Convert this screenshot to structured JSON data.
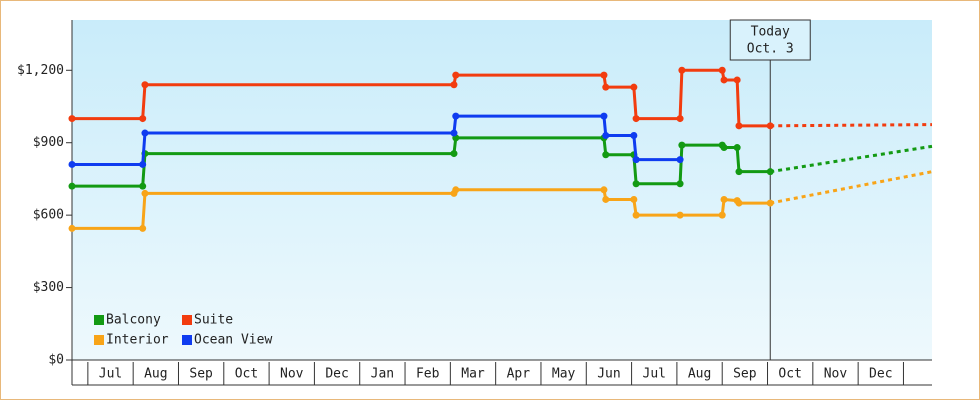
{
  "chart_data": {
    "type": "line",
    "ylim": [
      0,
      1400
    ],
    "yticks": [
      {
        "value": 0,
        "label": "$0"
      },
      {
        "value": 300,
        "label": "$300"
      },
      {
        "value": 600,
        "label": "$600"
      },
      {
        "value": 900,
        "label": "$900"
      },
      {
        "value": 1200,
        "label": "$1,200"
      }
    ],
    "xlim": [
      -0.35,
      18.63
    ],
    "xticks": [
      {
        "value": 0.5,
        "label": "Jul"
      },
      {
        "value": 1.5,
        "label": "Aug"
      },
      {
        "value": 2.5,
        "label": "Sep"
      },
      {
        "value": 3.5,
        "label": "Oct"
      },
      {
        "value": 4.5,
        "label": "Nov"
      },
      {
        "value": 5.5,
        "label": "Dec"
      },
      {
        "value": 6.5,
        "label": "Jan"
      },
      {
        "value": 7.5,
        "label": "Feb"
      },
      {
        "value": 8.5,
        "label": "Mar"
      },
      {
        "value": 9.5,
        "label": "Apr"
      },
      {
        "value": 10.5,
        "label": "May"
      },
      {
        "value": 11.5,
        "label": "Jun"
      },
      {
        "value": 12.5,
        "label": "Jul"
      },
      {
        "value": 13.5,
        "label": "Aug"
      },
      {
        "value": 14.5,
        "label": "Sep"
      },
      {
        "value": 15.5,
        "label": "Oct"
      },
      {
        "value": 16.5,
        "label": "Nov"
      },
      {
        "value": 17.5,
        "label": "Dec"
      }
    ],
    "today": {
      "x": 15.06,
      "label": [
        "Today",
        "Oct. 3"
      ]
    },
    "legend": "bottom-left",
    "series": [
      {
        "name": "Balcony",
        "color": "#139a13",
        "x": [
          -0.35,
          1.21,
          1.26,
          8.08,
          8.12,
          11.39,
          11.43,
          12.05,
          12.1,
          13.07,
          13.11,
          14.0,
          14.04,
          14.33,
          14.37,
          15.06
        ],
        "values": [
          720,
          720,
          855,
          855,
          920,
          920,
          850,
          850,
          730,
          730,
          890,
          890,
          880,
          880,
          780,
          780
        ],
        "projection": {
          "x": [
            15.06,
            18.63
          ],
          "values": [
            780,
            885
          ]
        }
      },
      {
        "name": "Suite",
        "color": "#f23c0f",
        "x": [
          -0.35,
          1.21,
          1.26,
          8.08,
          8.12,
          11.39,
          11.43,
          12.05,
          12.1,
          13.07,
          13.11,
          14.0,
          14.04,
          14.33,
          14.37,
          15.06
        ],
        "values": [
          1000,
          1000,
          1140,
          1140,
          1180,
          1180,
          1130,
          1130,
          1000,
          1000,
          1200,
          1200,
          1160,
          1160,
          970,
          970
        ],
        "projection": {
          "x": [
            15.06,
            18.63
          ],
          "values": [
            970,
            975
          ]
        }
      },
      {
        "name": "Interior",
        "color": "#f8a418",
        "x": [
          -0.35,
          1.21,
          1.26,
          8.08,
          8.12,
          11.39,
          11.43,
          12.05,
          12.1,
          13.07,
          14.0,
          14.04,
          14.33,
          14.37,
          15.06
        ],
        "values": [
          545,
          545,
          690,
          690,
          705,
          705,
          665,
          665,
          600,
          600,
          600,
          665,
          660,
          650,
          650
        ],
        "projection": {
          "x": [
            15.06,
            18.63
          ],
          "values": [
            650,
            780
          ]
        }
      },
      {
        "name": "Ocean View",
        "color": "#0f3cf0",
        "x": [
          -0.35,
          1.21,
          1.26,
          8.08,
          8.12,
          11.39,
          11.43,
          12.05,
          12.1,
          13.07
        ],
        "values": [
          810,
          810,
          940,
          940,
          1010,
          1010,
          930,
          930,
          830,
          830
        ]
      }
    ]
  }
}
